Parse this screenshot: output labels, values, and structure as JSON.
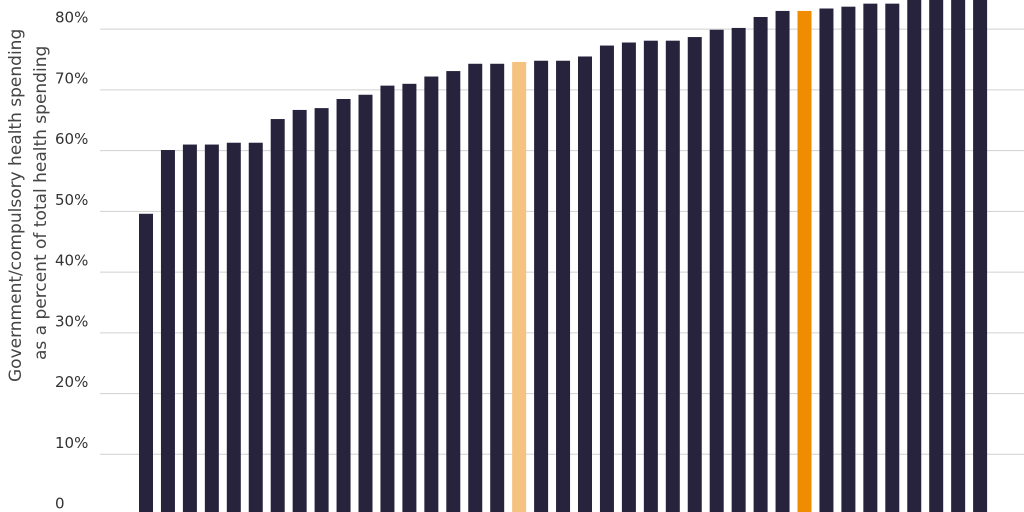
{
  "chart_data": {
    "type": "bar",
    "y_label": [
      "Government/compulsory health spending",
      "as a percent of total health spending"
    ],
    "categories": [
      null,
      null,
      null,
      null,
      null,
      null,
      null,
      null,
      null,
      null,
      null,
      null,
      null,
      null,
      null,
      null,
      null,
      null,
      null,
      null,
      null,
      null,
      null,
      null,
      null,
      null,
      null,
      null,
      null,
      null,
      null,
      null,
      null,
      null,
      null,
      null,
      null,
      null,
      null
    ],
    "values": [
      49.6,
      60.1,
      61,
      61,
      61.3,
      61.3,
      65.2,
      66.7,
      67,
      68.5,
      69.2,
      70.7,
      71,
      72.2,
      73.1,
      74.3,
      74.3,
      74.6,
      74.8,
      74.8,
      75.5,
      77.3,
      77.8,
      78.1,
      78.1,
      78.7,
      79.9,
      80.2,
      82,
      83,
      83,
      83.4,
      83.7,
      84.2,
      84.2,
      85,
      85,
      85,
      85
    ],
    "colors": [
      "#27233d",
      "#27233d",
      "#27233d",
      "#27233d",
      "#27233d",
      "#27233d",
      "#27233d",
      "#27233d",
      "#27233d",
      "#27233d",
      "#27233d",
      "#27233d",
      "#27233d",
      "#27233d",
      "#27233d",
      "#27233d",
      "#27233d",
      "#f5c27f",
      "#27233d",
      "#27233d",
      "#27233d",
      "#27233d",
      "#27233d",
      "#27233d",
      "#27233d",
      "#27233d",
      "#27233d",
      "#27233d",
      "#27233d",
      "#27233d",
      "#ef8c00",
      "#27233d",
      "#27233d",
      "#27233d",
      "#27233d",
      "#27233d",
      "#27233d",
      "#27233d",
      "#27233d"
    ],
    "ylim": [
      0.5,
      84.8
    ],
    "yticks": [
      0,
      {
        "value": 10,
        "label": "10%"
      },
      {
        "value": 20,
        "label": "20%"
      },
      {
        "value": 30,
        "label": "30%"
      },
      {
        "value": 40,
        "label": "40%"
      },
      {
        "value": 50,
        "label": "50%"
      },
      {
        "value": 60,
        "label": "60%"
      },
      {
        "value": 70,
        "label": "70%"
      },
      {
        "value": 80,
        "label": "80%"
      }
    ],
    "grid": true
  }
}
